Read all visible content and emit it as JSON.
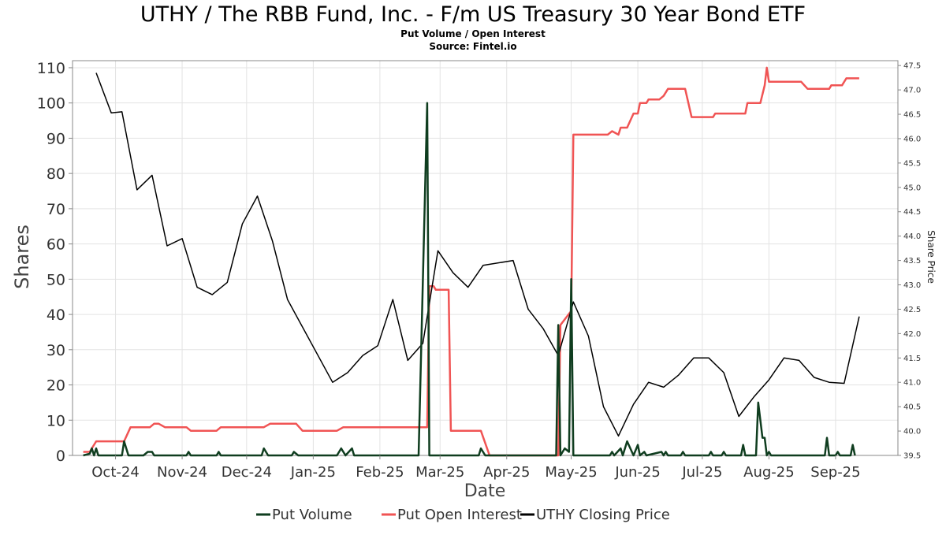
{
  "chart_data": {
    "type": "line",
    "title": "UTHY / The RBB Fund, Inc. - F/m US Treasury 30 Year Bond ETF",
    "subtitle": "Put Volume / Open Interest",
    "source": "Source: Fintel.io",
    "xlabel": "Date",
    "ylabel": "Shares",
    "y2label": "Share Price",
    "ylim": [
      0,
      112
    ],
    "y2lim": [
      39.5,
      47.6
    ],
    "xlim": [
      "2024-09-11",
      "2025-09-30"
    ],
    "y_ticks": [
      0,
      10,
      20,
      30,
      40,
      50,
      60,
      70,
      80,
      90,
      100,
      110
    ],
    "y2_ticks": [
      39.5,
      40.0,
      40.5,
      41.0,
      41.5,
      42.0,
      42.5,
      43.0,
      43.5,
      44.0,
      44.5,
      45.0,
      45.5,
      46.0,
      46.5,
      47.0,
      47.5
    ],
    "x_ticks": [
      {
        "date": "2024-10-01",
        "label": "Oct-24"
      },
      {
        "date": "2024-11-01",
        "label": "Nov-24"
      },
      {
        "date": "2024-12-01",
        "label": "Dec-24"
      },
      {
        "date": "2025-01-01",
        "label": "Jan-25"
      },
      {
        "date": "2025-02-01",
        "label": "Feb-25"
      },
      {
        "date": "2025-03-01",
        "label": "Mar-25"
      },
      {
        "date": "2025-04-01",
        "label": "Apr-25"
      },
      {
        "date": "2025-05-01",
        "label": "May-25"
      },
      {
        "date": "2025-06-01",
        "label": "Jun-25"
      },
      {
        "date": "2025-07-01",
        "label": "Jul-25"
      },
      {
        "date": "2025-08-01",
        "label": "Aug-25"
      },
      {
        "date": "2025-09-01",
        "label": "Sep-25"
      }
    ],
    "grid": true,
    "legend": "bottom-center",
    "series": [
      {
        "name": "Put Volume",
        "color": "#0f3d1f",
        "axis": "left",
        "points": [
          [
            "2024-09-16",
            0
          ],
          [
            "2024-09-19",
            0.5
          ],
          [
            "2024-09-20",
            2
          ],
          [
            "2024-09-21",
            0
          ],
          [
            "2024-09-22",
            2
          ],
          [
            "2024-09-23",
            0
          ],
          [
            "2024-10-04",
            0
          ],
          [
            "2024-10-05",
            4
          ],
          [
            "2024-10-07",
            0
          ],
          [
            "2024-10-14",
            0
          ],
          [
            "2024-10-16",
            1
          ],
          [
            "2024-10-18",
            1
          ],
          [
            "2024-10-19",
            0
          ],
          [
            "2024-11-03",
            0
          ],
          [
            "2024-11-04",
            1
          ],
          [
            "2024-11-05",
            0
          ],
          [
            "2024-11-17",
            0
          ],
          [
            "2024-11-18",
            1
          ],
          [
            "2024-11-19",
            0
          ],
          [
            "2024-12-08",
            0
          ],
          [
            "2024-12-09",
            2
          ],
          [
            "2024-12-11",
            0
          ],
          [
            "2024-12-22",
            0
          ],
          [
            "2024-12-23",
            1
          ],
          [
            "2024-12-25",
            0
          ],
          [
            "2025-01-12",
            0
          ],
          [
            "2025-01-14",
            2
          ],
          [
            "2025-01-16",
            0
          ],
          [
            "2025-01-19",
            2
          ],
          [
            "2025-01-20",
            0
          ],
          [
            "2025-02-19",
            0
          ],
          [
            "2025-02-23",
            100
          ],
          [
            "2025-02-24",
            0
          ],
          [
            "2025-03-19",
            0
          ],
          [
            "2025-03-20",
            2
          ],
          [
            "2025-03-22",
            0
          ],
          [
            "2025-04-24",
            0
          ],
          [
            "2025-04-25",
            37
          ],
          [
            "2025-04-26",
            0
          ],
          [
            "2025-04-28",
            2
          ],
          [
            "2025-04-30",
            1
          ],
          [
            "2025-05-01",
            50
          ],
          [
            "2025-05-02",
            0
          ],
          [
            "2025-05-19",
            0
          ],
          [
            "2025-05-20",
            1
          ],
          [
            "2025-05-21",
            0
          ],
          [
            "2025-05-24",
            2
          ],
          [
            "2025-05-25",
            0
          ],
          [
            "2025-05-27",
            4
          ],
          [
            "2025-05-30",
            0
          ],
          [
            "2025-06-01",
            3
          ],
          [
            "2025-06-02",
            0
          ],
          [
            "2025-06-04",
            1
          ],
          [
            "2025-06-05",
            0
          ],
          [
            "2025-06-12",
            1
          ],
          [
            "2025-06-13",
            0
          ],
          [
            "2025-06-14",
            1
          ],
          [
            "2025-06-15",
            0
          ],
          [
            "2025-06-21",
            0
          ],
          [
            "2025-06-22",
            1
          ],
          [
            "2025-06-23",
            0
          ],
          [
            "2025-07-04",
            0
          ],
          [
            "2025-07-05",
            1
          ],
          [
            "2025-07-06",
            0
          ],
          [
            "2025-07-10",
            0
          ],
          [
            "2025-07-11",
            1
          ],
          [
            "2025-07-12",
            0
          ],
          [
            "2025-07-19",
            0
          ],
          [
            "2025-07-20",
            3
          ],
          [
            "2025-07-21",
            0
          ],
          [
            "2025-07-26",
            0
          ],
          [
            "2025-07-27",
            15
          ],
          [
            "2025-07-29",
            5
          ],
          [
            "2025-07-30",
            5
          ],
          [
            "2025-07-31",
            0
          ],
          [
            "2025-08-01",
            1
          ],
          [
            "2025-08-02",
            0
          ],
          [
            "2025-08-27",
            0
          ],
          [
            "2025-08-28",
            5
          ],
          [
            "2025-08-29",
            0
          ],
          [
            "2025-09-01",
            0
          ],
          [
            "2025-09-02",
            1
          ],
          [
            "2025-09-03",
            0
          ],
          [
            "2025-09-08",
            0
          ],
          [
            "2025-09-09",
            3
          ],
          [
            "2025-09-10",
            0
          ]
        ]
      },
      {
        "name": "Put Open Interest",
        "color": "#f05454",
        "axis": "left",
        "points": [
          [
            "2024-09-16",
            1
          ],
          [
            "2024-09-19",
            1
          ],
          [
            "2024-09-22",
            4
          ],
          [
            "2024-10-05",
            4
          ],
          [
            "2024-10-08",
            8
          ],
          [
            "2024-10-17",
            8
          ],
          [
            "2024-10-19",
            9
          ],
          [
            "2024-10-21",
            9
          ],
          [
            "2024-10-24",
            8
          ],
          [
            "2024-11-03",
            8
          ],
          [
            "2024-11-05",
            7
          ],
          [
            "2024-11-17",
            7
          ],
          [
            "2024-11-19",
            8
          ],
          [
            "2024-12-09",
            8
          ],
          [
            "2024-12-12",
            9
          ],
          [
            "2024-12-24",
            9
          ],
          [
            "2024-12-27",
            7
          ],
          [
            "2025-01-12",
            7
          ],
          [
            "2025-01-15",
            8
          ],
          [
            "2025-02-23",
            8
          ],
          [
            "2025-02-24",
            48
          ],
          [
            "2025-02-26",
            48
          ],
          [
            "2025-02-27",
            47
          ],
          [
            "2025-03-05",
            47
          ],
          [
            "2025-03-06",
            7
          ],
          [
            "2025-03-20",
            7
          ],
          [
            "2025-03-24",
            0
          ],
          [
            "2025-04-25",
            0
          ],
          [
            "2025-04-26",
            37
          ],
          [
            "2025-05-01",
            41
          ],
          [
            "2025-05-02",
            91
          ],
          [
            "2025-05-18",
            91
          ],
          [
            "2025-05-20",
            92
          ],
          [
            "2025-05-23",
            91
          ],
          [
            "2025-05-24",
            93
          ],
          [
            "2025-05-27",
            93
          ],
          [
            "2025-05-30",
            97
          ],
          [
            "2025-06-01",
            97
          ],
          [
            "2025-06-02",
            100
          ],
          [
            "2025-06-05",
            100
          ],
          [
            "2025-06-06",
            101
          ],
          [
            "2025-06-11",
            101
          ],
          [
            "2025-06-13",
            102
          ],
          [
            "2025-06-15",
            104
          ],
          [
            "2025-06-23",
            104
          ],
          [
            "2025-06-26",
            96
          ],
          [
            "2025-07-06",
            96
          ],
          [
            "2025-07-07",
            97
          ],
          [
            "2025-07-21",
            97
          ],
          [
            "2025-07-22",
            100
          ],
          [
            "2025-07-28",
            100
          ],
          [
            "2025-07-30",
            105
          ],
          [
            "2025-07-31",
            110
          ],
          [
            "2025-08-01",
            106
          ],
          [
            "2025-08-16",
            106
          ],
          [
            "2025-08-19",
            104
          ],
          [
            "2025-08-29",
            104
          ],
          [
            "2025-08-30",
            105
          ],
          [
            "2025-09-04",
            105
          ],
          [
            "2025-09-06",
            107
          ],
          [
            "2025-09-12",
            107
          ]
        ]
      },
      {
        "name": "UTHY Closing Price",
        "color": "#000000",
        "axis": "right",
        "points": [
          [
            "2024-09-22",
            47.35
          ],
          [
            "2024-09-29",
            46.53
          ],
          [
            "2024-10-04",
            46.55
          ],
          [
            "2024-10-11",
            44.95
          ],
          [
            "2024-10-18",
            45.25
          ],
          [
            "2024-10-25",
            43.8
          ],
          [
            "2024-11-01",
            43.95
          ],
          [
            "2024-11-08",
            42.95
          ],
          [
            "2024-11-15",
            42.8
          ],
          [
            "2024-11-22",
            43.05
          ],
          [
            "2024-11-29",
            44.25
          ],
          [
            "2024-12-06",
            44.82
          ],
          [
            "2024-12-13",
            43.9
          ],
          [
            "2024-12-20",
            42.7
          ],
          [
            "2025-01-10",
            41.0
          ],
          [
            "2025-01-17",
            41.2
          ],
          [
            "2025-01-24",
            41.55
          ],
          [
            "2025-01-31",
            41.75
          ],
          [
            "2025-02-07",
            42.7
          ],
          [
            "2025-02-14",
            41.45
          ],
          [
            "2025-02-21",
            41.8
          ],
          [
            "2025-02-28",
            43.7
          ],
          [
            "2025-03-07",
            43.25
          ],
          [
            "2025-03-14",
            42.95
          ],
          [
            "2025-03-21",
            43.4
          ],
          [
            "2025-04-04",
            43.5
          ],
          [
            "2025-04-11",
            42.5
          ],
          [
            "2025-04-18",
            42.1
          ],
          [
            "2025-04-25",
            41.55
          ],
          [
            "2025-05-02",
            42.65
          ],
          [
            "2025-05-09",
            41.95
          ],
          [
            "2025-05-16",
            40.5
          ],
          [
            "2025-05-23",
            39.9
          ],
          [
            "2025-05-30",
            40.55
          ],
          [
            "2025-06-06",
            41.0
          ],
          [
            "2025-06-13",
            40.9
          ],
          [
            "2025-06-20",
            41.15
          ],
          [
            "2025-06-27",
            41.5
          ],
          [
            "2025-07-04",
            41.5
          ],
          [
            "2025-07-11",
            41.2
          ],
          [
            "2025-07-18",
            40.3
          ],
          [
            "2025-07-25",
            40.7
          ],
          [
            "2025-08-01",
            41.05
          ],
          [
            "2025-08-08",
            41.5
          ],
          [
            "2025-08-15",
            41.45
          ],
          [
            "2025-08-22",
            41.1
          ],
          [
            "2025-08-29",
            41.0
          ],
          [
            "2025-09-05",
            40.98
          ],
          [
            "2025-09-12",
            42.35
          ]
        ]
      }
    ]
  }
}
